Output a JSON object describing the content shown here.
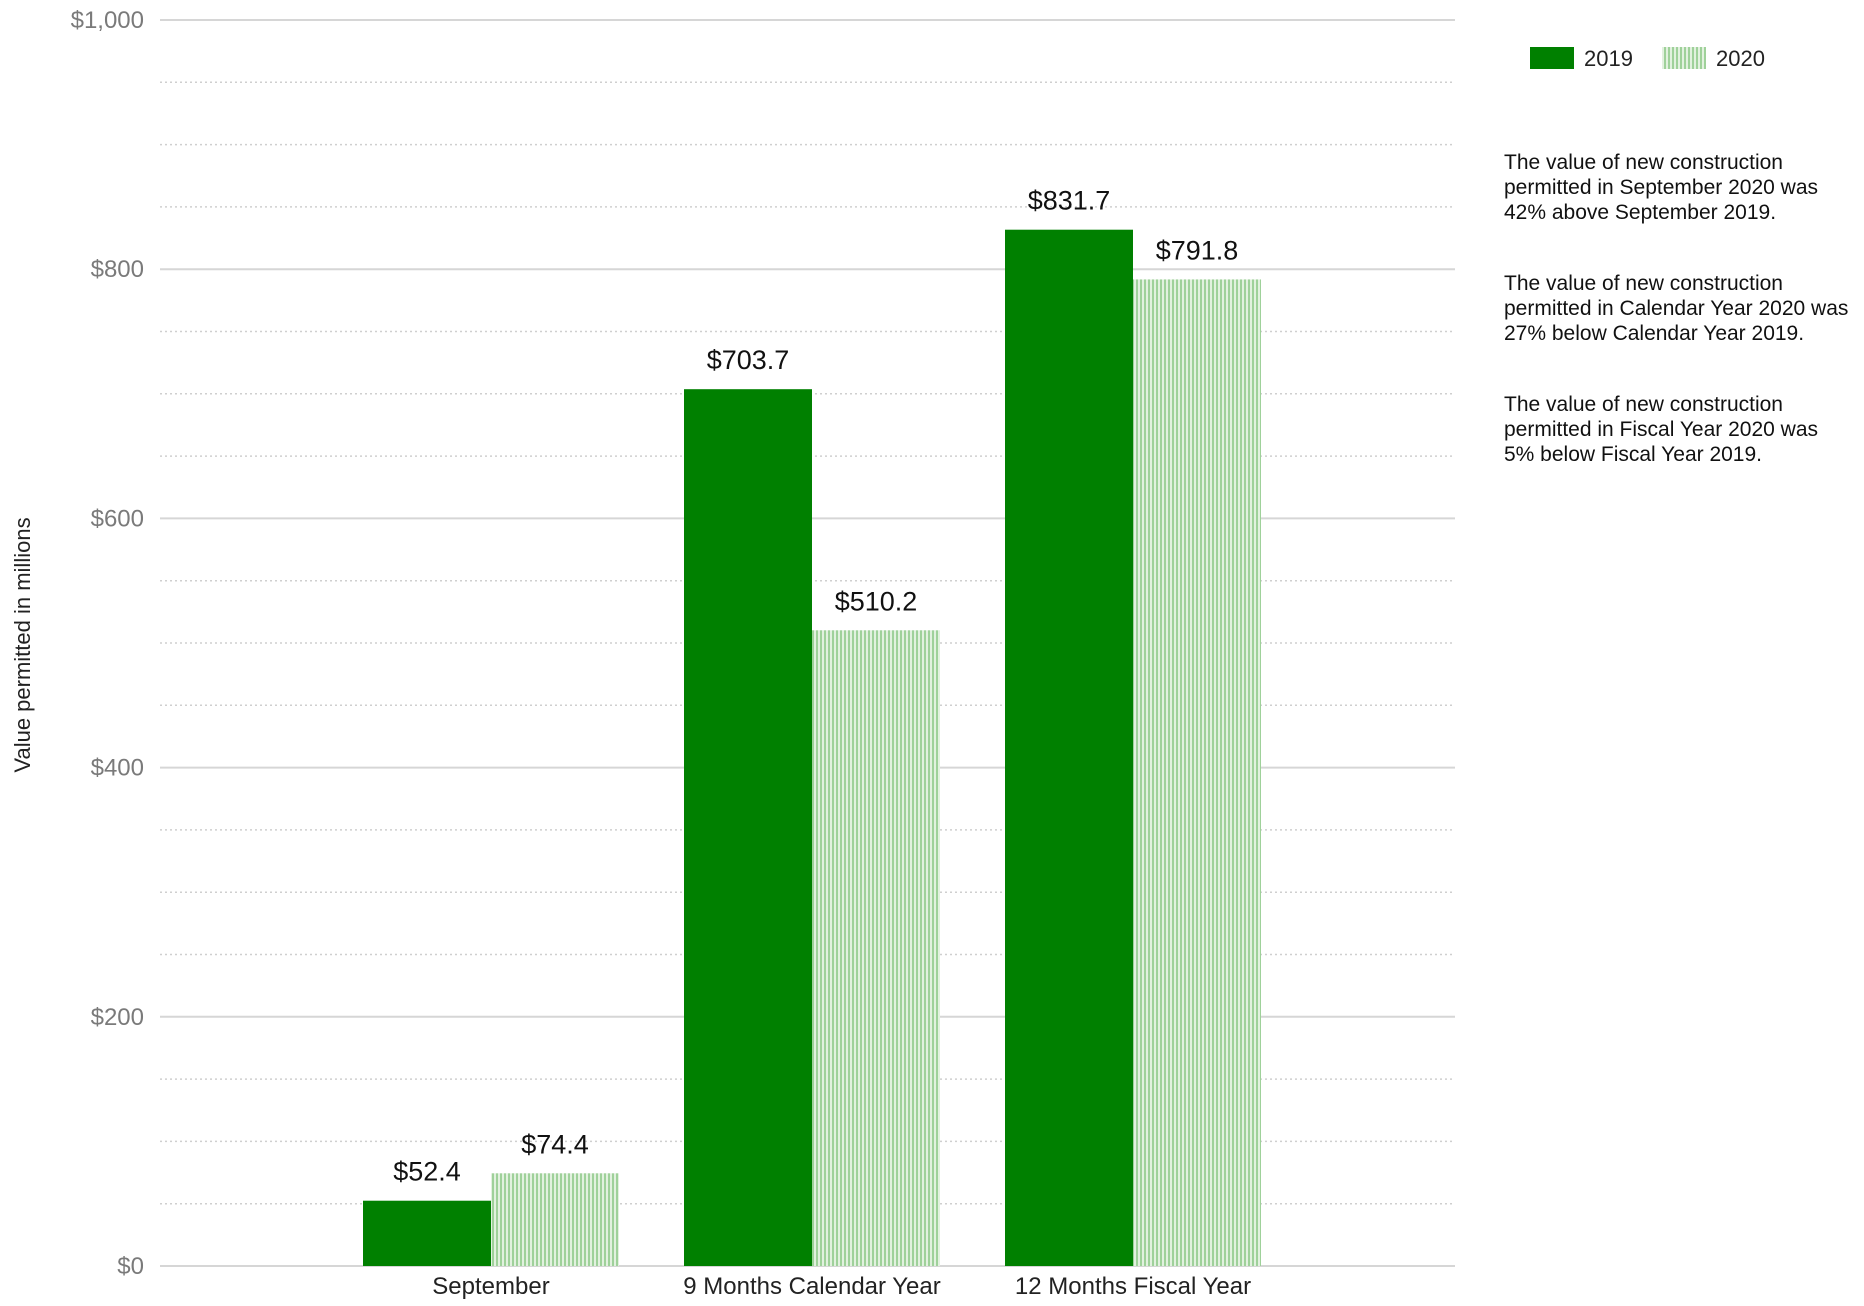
{
  "chart_data": {
    "type": "bar",
    "categories": [
      "September",
      "9 Months Calendar Year",
      "12 Months Fiscal Year"
    ],
    "series": [
      {
        "name": "2019",
        "values": [
          52.4,
          703.7,
          831.7
        ],
        "color": "#008000",
        "pattern": "solid"
      },
      {
        "name": "2020",
        "values": [
          74.4,
          510.2,
          791.8
        ],
        "color": "#b4dcb0",
        "pattern": "vertical-hatch"
      }
    ],
    "data_labels": [
      [
        "$52.4",
        "$703.7",
        "$831.7"
      ],
      [
        "$74.4",
        "$510.2",
        "$791.8"
      ]
    ],
    "ylabel": "Value permitted in millions",
    "ylim": [
      0,
      1000
    ],
    "yticks": [
      0,
      200,
      400,
      600,
      800,
      1000
    ],
    "ytick_labels": [
      "$0",
      "$200",
      "$400",
      "$600",
      "$800",
      "$1,000"
    ],
    "grid": true,
    "legend_position": "top-right"
  },
  "notes": [
    "The value of new construction permitted in September 2020 was 42% above September 2019.",
    "The value of new construction permitted in Calendar Year 2020 was 27% below Calendar Year 2019.",
    "The value of new construction permitted in Fiscal Year 2020 was 5% below Fiscal Year 2019."
  ]
}
